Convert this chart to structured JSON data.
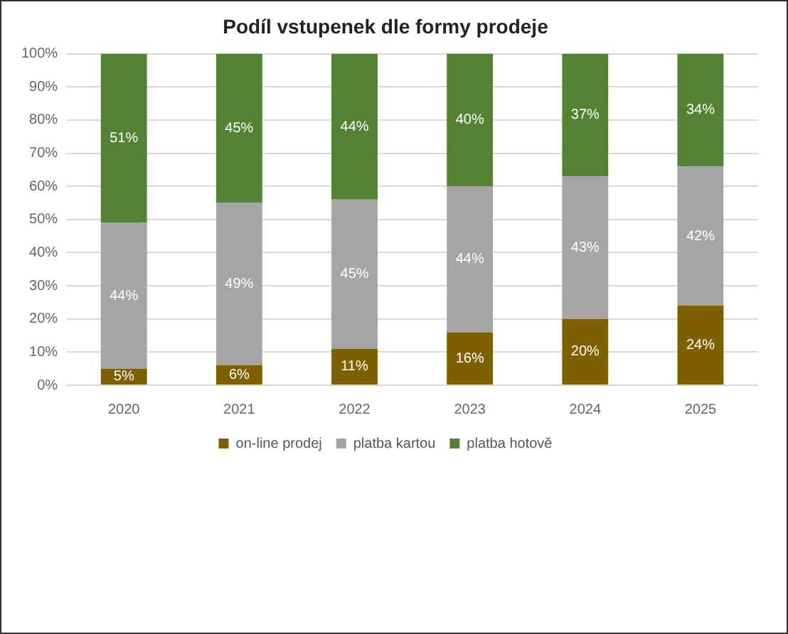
{
  "chart_data": {
    "type": "bar",
    "title": "Podíl vstupenek dle formy prodeje",
    "stacked": true,
    "categories": [
      "2020",
      "2021",
      "2022",
      "2023",
      "2024",
      "2025"
    ],
    "series": [
      {
        "name": "on-line prodej",
        "color": "#7f6000",
        "values": [
          5,
          6,
          11,
          16,
          20,
          24
        ],
        "value_labels": [
          "5%",
          "6%",
          "11%",
          "16%",
          "20%",
          "24%"
        ]
      },
      {
        "name": "platba kartou",
        "color": "#a5a5a5",
        "values": [
          44,
          49,
          45,
          44,
          43,
          42
        ],
        "value_labels": [
          "44%",
          "49%",
          "45%",
          "44%",
          "43%",
          "42%"
        ]
      },
      {
        "name": "platba hotově",
        "color": "#548235",
        "values": [
          51,
          45,
          44,
          40,
          37,
          34
        ],
        "value_labels": [
          "51%",
          "45%",
          "44%",
          "40%",
          "37%",
          "34%"
        ]
      }
    ],
    "ylim": [
      0,
      100
    ],
    "yticks": [
      {
        "value": 0,
        "label": "0%"
      },
      {
        "value": 10,
        "label": "10%"
      },
      {
        "value": 20,
        "label": "20%"
      },
      {
        "value": 30,
        "label": "30%"
      },
      {
        "value": 40,
        "label": "40%"
      },
      {
        "value": 50,
        "label": "50%"
      },
      {
        "value": 60,
        "label": "60%"
      },
      {
        "value": 70,
        "label": "70%"
      },
      {
        "value": 80,
        "label": "80%"
      },
      {
        "value": 90,
        "label": "90%"
      },
      {
        "value": 100,
        "label": "100%"
      }
    ],
    "grid": "y",
    "legend": "bottom"
  }
}
